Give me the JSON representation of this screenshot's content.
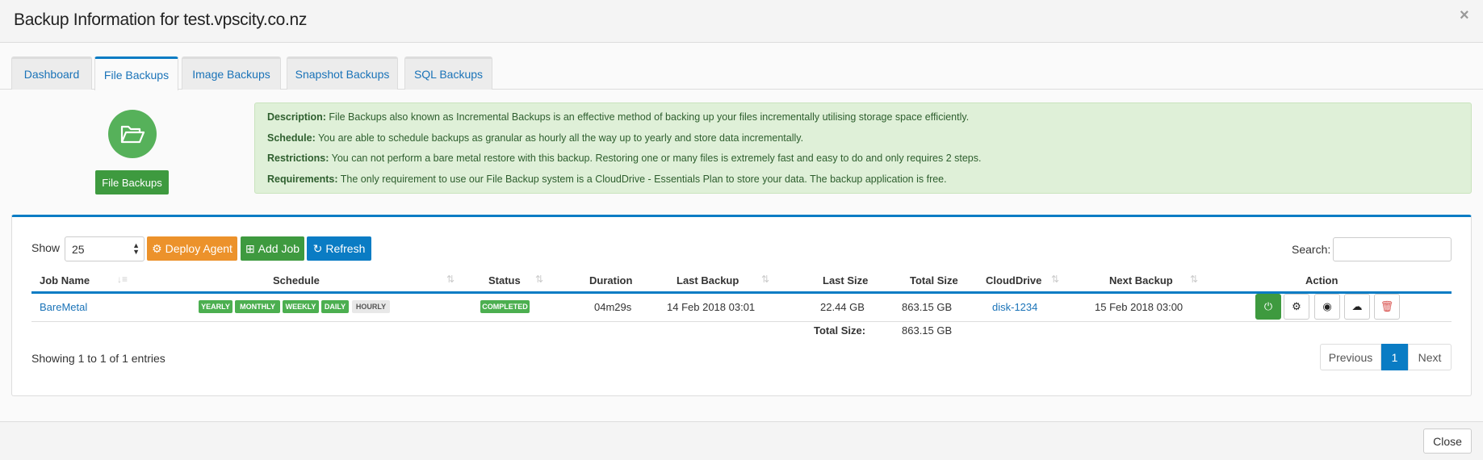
{
  "modal": {
    "title": "Backup Information for test.vpscity.co.nz",
    "close_icon": "×",
    "close_label": "Close"
  },
  "tabs": [
    {
      "label": "Dashboard"
    },
    {
      "label": "File Backups",
      "active": true
    },
    {
      "label": "Image Backups"
    },
    {
      "label": "Snapshot Backups"
    },
    {
      "label": "SQL Backups"
    }
  ],
  "hero": {
    "icon": "folder-open-icon",
    "button_label": "File Backups",
    "color": "#56b15a"
  },
  "info": [
    {
      "label": "Description:",
      "text": " File Backups also known as Incremental Backups is an effective method of backing up your files incrementally utilising storage space efficiently."
    },
    {
      "label": "Schedule:",
      "text": " You are able to schedule backups as granular as hourly all the way up to yearly and store data incrementally."
    },
    {
      "label": "Restrictions:",
      "text": " You can not perform a bare metal restore with this backup. Restoring one or many files is extremely fast and easy to do and only requires 2 steps."
    },
    {
      "label": "Requirements:",
      "text": " The only requirement to use our File Backup system is a CloudDrive - Essentials Plan to store your data. The backup application is free."
    }
  ],
  "toolbar": {
    "show_label": "Show",
    "page_size": "25",
    "deploy_label": "Deploy Agent",
    "add_label": "Add Job",
    "refresh_label": "Refresh",
    "search_label": "Search:",
    "search_value": ""
  },
  "table": {
    "columns": [
      "Job Name",
      "Schedule",
      "Status",
      "Duration",
      "Last Backup",
      "Last Size",
      "Total Size",
      "CloudDrive",
      "Next Backup",
      "Action"
    ],
    "rows": [
      {
        "job": "BareMetal",
        "schedule": [
          {
            "label": "YEARLY",
            "active": true
          },
          {
            "label": "MONTHLY",
            "active": true
          },
          {
            "label": "WEEKLY",
            "active": true
          },
          {
            "label": "DAILY",
            "active": true
          },
          {
            "label": "HOURLY",
            "active": false
          }
        ],
        "status": "COMPLETED",
        "duration": "04m29s",
        "last_backup": "14 Feb 2018 03:01",
        "last_size": "22.44 GB",
        "total_size": "863.15 GB",
        "clouddrive": "disk-1234",
        "next_backup": "15 Feb 2018 03:00"
      }
    ],
    "total_label": "Total Size:",
    "total_value": "863.15 GB"
  },
  "pagination": {
    "info": "Showing 1 to 1 of 1 entries",
    "previous": "Previous",
    "current": "1",
    "next": "Next"
  }
}
